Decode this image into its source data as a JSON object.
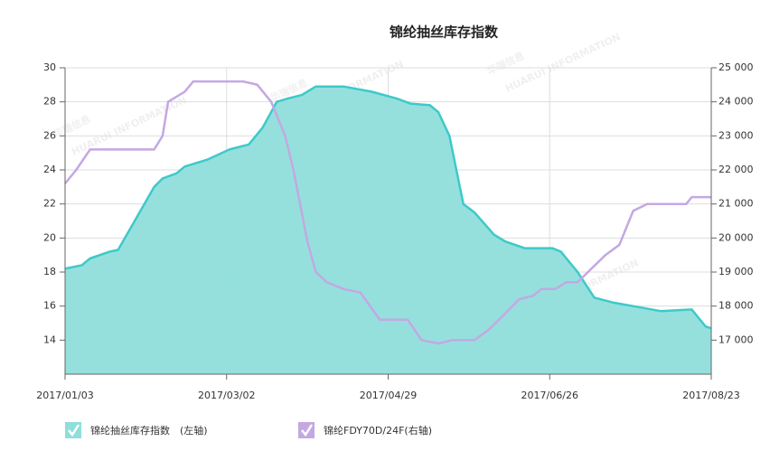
{
  "chart_data": {
    "type": "area-line",
    "title": "锦纶抽丝库存指数",
    "watermark": [
      "华瑞信息",
      "HUARUI INFORMATION"
    ],
    "xlim": [
      "2017/01/03",
      "2017/08/23"
    ],
    "xticks": [
      "2017/01/03",
      "2017/03/02",
      "2017/04/29",
      "2017/06/26",
      "2017/08/23"
    ],
    "ylim": [
      12,
      30
    ],
    "yticks": [
      14,
      16,
      18,
      20,
      22,
      24,
      26,
      28,
      30
    ],
    "y2lim": [
      16000,
      25000
    ],
    "y2ticks": [
      {
        "value": 17000,
        "label": "17 000"
      },
      {
        "value": 18000,
        "label": "18 000"
      },
      {
        "value": 19000,
        "label": "19 000"
      },
      {
        "value": 20000,
        "label": "20 000"
      },
      {
        "value": 21000,
        "label": "21 000"
      },
      {
        "value": 22000,
        "label": "22 000"
      },
      {
        "value": 23000,
        "label": "23 000"
      },
      {
        "value": 24000,
        "label": "24 000"
      },
      {
        "value": 25000,
        "label": "25 000"
      }
    ],
    "grid": true,
    "legend": "bottom-left",
    "series": [
      {
        "name": "锦纶抽丝库存指数　(左轴)",
        "color": "#3ec9c9",
        "fill": "#8fdedb",
        "axis": "y",
        "x": [
          "2017/01/03",
          "2017/01/09",
          "2017/01/12",
          "2017/01/19",
          "2017/01/22",
          "2017/01/28",
          "2017/02/04",
          "2017/02/07",
          "2017/02/12",
          "2017/02/15",
          "2017/02/23",
          "2017/03/03",
          "2017/03/10",
          "2017/03/15",
          "2017/03/20",
          "2017/03/24",
          "2017/03/29",
          "2017/04/03",
          "2017/04/13",
          "2017/04/23",
          "2017/05/02",
          "2017/05/07",
          "2017/05/14",
          "2017/05/17",
          "2017/05/21",
          "2017/05/26",
          "2017/05/30",
          "2017/06/06",
          "2017/06/10",
          "2017/06/17",
          "2017/06/27",
          "2017/06/30",
          "2017/07/06",
          "2017/07/12",
          "2017/07/19",
          "2017/07/26",
          "2017/08/05",
          "2017/08/16",
          "2017/08/21",
          "2017/08/23"
        ],
        "values": [
          18.2,
          18.4,
          18.8,
          19.2,
          19.3,
          21,
          23,
          23.5,
          23.8,
          24.2,
          24.6,
          25.2,
          25.5,
          26.5,
          28,
          28.2,
          28.4,
          28.9,
          28.9,
          28.6,
          28.2,
          27.9,
          27.8,
          27.4,
          26,
          22,
          21.5,
          20.2,
          19.8,
          19.4,
          19.4,
          19.2,
          18,
          16.5,
          16.2,
          16,
          15.7,
          15.8,
          14.8,
          14.7
        ]
      },
      {
        "name": "锦纶FDY70D/24F(右轴)",
        "color": "#c4a8e2",
        "axis": "y2",
        "x": [
          "2017/01/03",
          "2017/01/07",
          "2017/01/12",
          "2017/02/04",
          "2017/02/07",
          "2017/02/09",
          "2017/02/15",
          "2017/02/18",
          "2017/03/08",
          "2017/03/13",
          "2017/03/18",
          "2017/03/23",
          "2017/03/26",
          "2017/03/31",
          "2017/04/03",
          "2017/04/07",
          "2017/04/13",
          "2017/04/19",
          "2017/04/26",
          "2017/05/06",
          "2017/05/11",
          "2017/05/17",
          "2017/05/22",
          "2017/05/30",
          "2017/06/04",
          "2017/06/09",
          "2017/06/15",
          "2017/06/20",
          "2017/06/23",
          "2017/06/28",
          "2017/07/02",
          "2017/07/06",
          "2017/07/11",
          "2017/07/16",
          "2017/07/21",
          "2017/07/26",
          "2017/07/31",
          "2017/08/14",
          "2017/08/16",
          "2017/08/23"
        ],
        "values": [
          21600,
          22000,
          22600,
          22600,
          23000,
          24000,
          24300,
          24600,
          24600,
          24500,
          24000,
          23000,
          22000,
          19900,
          19000,
          18700,
          18500,
          18400,
          17600,
          17600,
          17000,
          16900,
          17000,
          17000,
          17300,
          17700,
          18200,
          18300,
          18500,
          18500,
          18700,
          18700,
          19100,
          19500,
          19800,
          20800,
          21000,
          21000,
          21200,
          21200
        ]
      }
    ]
  }
}
